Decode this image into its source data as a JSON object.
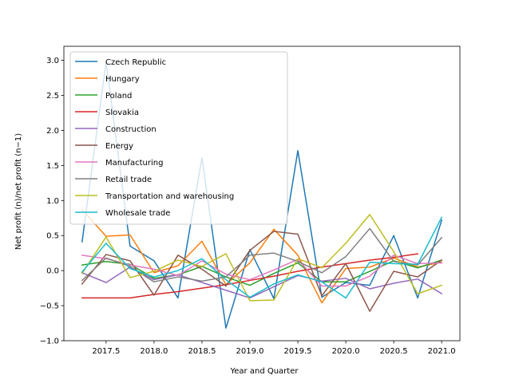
{
  "chart_data": {
    "type": "line",
    "title": "",
    "xlabel": "Year and Quarter",
    "ylabel": "Net profit (n)/net profit (n−1)",
    "xlim": [
      2017.06,
      2021.19
    ],
    "ylim": [
      -1.0,
      3.2
    ],
    "xticks": [
      2017.5,
      2018.0,
      2018.5,
      2019.0,
      2019.5,
      2020.0,
      2020.5,
      2021.0
    ],
    "xtick_labels": [
      "2017.5",
      "2018.0",
      "2018.5",
      "2019.0",
      "2019.5",
      "2020.0",
      "2020.5",
      "2021.0"
    ],
    "yticks": [
      -1.0,
      -0.5,
      0.0,
      0.5,
      1.0,
      1.5,
      2.0,
      2.5,
      3.0
    ],
    "ytick_labels": [
      "−1.0",
      "−0.5",
      "0.0",
      "0.5",
      "1.0",
      "1.5",
      "2.0",
      "2.5",
      "3.0"
    ],
    "grid": false,
    "legend_position": "top-left",
    "series": [
      {
        "name": "Czech Republic",
        "color": "#1f77b4",
        "x": [
          2017.25,
          2017.5,
          2017.75,
          2018.0,
          2018.25,
          2018.5,
          2018.75,
          2019.0,
          2019.25,
          2019.5,
          2019.75,
          2020.0,
          2020.25,
          2020.5,
          2020.75,
          2021.0
        ],
        "y": [
          0.41,
          2.98,
          0.35,
          0.14,
          -0.39,
          1.61,
          -0.82,
          0.3,
          -0.4,
          1.71,
          -0.38,
          -0.17,
          -0.21,
          0.5,
          -0.39,
          0.72
        ]
      },
      {
        "name": "Hungary",
        "color": "#ff7f0e",
        "x": [
          2017.25,
          2017.5,
          2017.75,
          2018.0,
          2018.25,
          2018.5,
          2018.75,
          2019.0,
          2019.25,
          2019.5,
          2019.75,
          2020.0,
          2020.25,
          2020.5,
          2020.75,
          2021.0
        ],
        "y": [
          0.87,
          0.49,
          0.51,
          -0.03,
          0.07,
          0.42,
          -0.2,
          0.11,
          0.59,
          0.22,
          -0.46,
          0.03,
          0.05,
          0.18,
          0.05,
          0.12
        ]
      },
      {
        "name": "Poland",
        "color": "#2ca02c",
        "x": [
          2017.25,
          2017.5,
          2017.75,
          2018.0,
          2018.25,
          2018.5,
          2018.75,
          2019.0,
          2019.25,
          2019.5,
          2019.75,
          2020.0,
          2020.25,
          2020.5,
          2020.75,
          2021.0
        ],
        "y": [
          0.08,
          0.13,
          0.09,
          -0.11,
          -0.06,
          0.06,
          -0.09,
          -0.21,
          -0.04,
          0.11,
          -0.16,
          -0.16,
          -0.01,
          0.14,
          0.04,
          0.15
        ]
      },
      {
        "name": "Slovakia",
        "color": "#d62728",
        "x": [
          2017.25,
          2017.5,
          2017.75,
          2018.0,
          2018.25,
          2018.5,
          2018.75,
          2019.0,
          2019.25,
          2019.5,
          2019.75,
          2020.0,
          2020.25,
          2020.5,
          2020.75
        ],
        "y": [
          -0.39,
          -0.39,
          -0.39,
          -0.34,
          -0.3,
          -0.25,
          -0.2,
          -0.14,
          -0.08,
          -0.01,
          0.05,
          0.1,
          0.15,
          0.19,
          0.24
        ]
      },
      {
        "name": "Construction",
        "color": "#9467bd",
        "x": [
          2017.25,
          2017.5,
          2017.75,
          2018.0,
          2018.25,
          2018.5,
          2018.75,
          2019.0,
          2019.25,
          2019.5,
          2019.75,
          2020.0,
          2020.25,
          2020.5,
          2020.75,
          2021.0
        ],
        "y": [
          -0.03,
          -0.17,
          0.05,
          -0.13,
          -0.06,
          -0.17,
          -0.28,
          -0.39,
          -0.23,
          -0.07,
          -0.15,
          -0.11,
          -0.26,
          -0.18,
          -0.12,
          -0.33
        ]
      },
      {
        "name": "Energy",
        "color": "#8c564b",
        "x": [
          2017.25,
          2017.5,
          2017.75,
          2018.0,
          2018.25,
          2018.5,
          2018.75,
          2019.0,
          2019.25,
          2019.5,
          2019.75,
          2020.0,
          2020.25,
          2020.5,
          2020.75,
          2021.0
        ],
        "y": [
          -0.19,
          0.23,
          0.14,
          -0.35,
          0.22,
          0.02,
          -0.22,
          0.29,
          0.56,
          0.52,
          -0.36,
          0.1,
          -0.58,
          -0.01,
          -0.09,
          0.15
        ]
      },
      {
        "name": "Manufacturing",
        "color": "#e377c2",
        "x": [
          2017.25,
          2017.5,
          2017.75,
          2018.0,
          2018.25,
          2018.5,
          2018.75,
          2019.0,
          2019.25,
          2019.5,
          2019.75,
          2020.0,
          2020.25,
          2020.5,
          2020.75,
          2021.0
        ],
        "y": [
          0.22,
          0.17,
          0.08,
          0.02,
          -0.07,
          0.14,
          -0.05,
          -0.13,
          0.01,
          0.16,
          -0.22,
          -0.22,
          -0.08,
          0.22,
          0.1,
          0.11
        ]
      },
      {
        "name": "Retail trade",
        "color": "#7f7f7f",
        "x": [
          2017.25,
          2017.5,
          2017.75,
          2018.0,
          2018.25,
          2018.5,
          2018.75,
          2019.0,
          2019.25,
          2019.5,
          2019.75,
          2020.0,
          2020.25,
          2020.5,
          2020.75,
          2021.0
        ],
        "y": [
          -0.14,
          0.18,
          0.06,
          -0.16,
          -0.09,
          -0.15,
          -0.09,
          0.22,
          0.25,
          0.13,
          -0.03,
          0.2,
          0.6,
          0.13,
          0.08,
          0.47
        ]
      },
      {
        "name": "Transportation and warehousing",
        "color": "#bcbd22",
        "x": [
          2017.25,
          2017.5,
          2017.75,
          2018.0,
          2018.25,
          2018.5,
          2018.75,
          2019.0,
          2019.25,
          2019.5,
          2019.75,
          2020.0,
          2020.25,
          2020.5,
          2020.75,
          2021.0
        ],
        "y": [
          -0.04,
          0.48,
          -0.1,
          -0.01,
          0.15,
          0.06,
          0.24,
          -0.43,
          -0.42,
          0.17,
          0.04,
          0.39,
          0.8,
          0.27,
          -0.33,
          -0.21
        ]
      },
      {
        "name": "Wholesale trade",
        "color": "#17becf",
        "x": [
          2017.25,
          2017.5,
          2017.75,
          2018.0,
          2018.25,
          2018.5,
          2018.75,
          2019.0,
          2019.25,
          2019.5,
          2019.75,
          2020.0,
          2020.25,
          2020.5,
          2020.75,
          2021.0
        ],
        "y": [
          -0.02,
          0.39,
          0.03,
          -0.09,
          0.0,
          0.17,
          -0.13,
          -0.38,
          -0.19,
          -0.06,
          -0.16,
          -0.39,
          0.12,
          0.1,
          0.09,
          0.76
        ]
      }
    ]
  }
}
